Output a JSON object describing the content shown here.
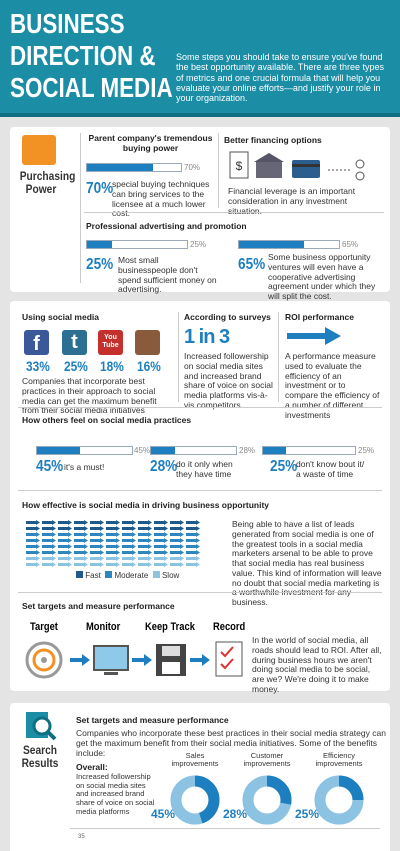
{
  "header": {
    "title": [
      "BUSINESS",
      "DIRECTION &",
      "SOCIAL MEDIA"
    ],
    "intro": "Some steps you should take to ensure you've found the best opportunity available. There are three types of metrics and one crucial formula that will help you evaluate your online efforts—and justify your role in your organization."
  },
  "purchasing": {
    "icon_label": "Purchasing Power",
    "buying": {
      "title": "Parent company's tremendous buying power",
      "stat": {
        "value": 70,
        "label": "70%"
      },
      "text": "special buying techniques can bring services to the licensee at a much lower cost."
    },
    "financing": {
      "title": "Better financing options",
      "text": "Financial leverage is an important consideration in any investment situation."
    },
    "advertising": {
      "title": "Professional advertising and promotion",
      "stats": [
        {
          "value": 25,
          "label": "25%",
          "text": "Most small businesspeople don't spend sufficient money on advertising."
        },
        {
          "value": 65,
          "label": "65%",
          "text": "Some business opportunity ventures will even have a cooperative advertising agreement under which they will split the cost."
        }
      ]
    }
  },
  "social": {
    "using": {
      "title": "Using social media",
      "platforms": [
        {
          "icon": "f",
          "value": 33,
          "label": "33%"
        },
        {
          "icon": "t",
          "value": 25,
          "label": "25%"
        },
        {
          "icon": "You Tube",
          "value": 18,
          "label": "18%"
        },
        {
          "icon": "",
          "value": 16,
          "label": "16%"
        }
      ],
      "text": "Companies that incorporate best practices in their approach to social media can get the maximum benefit from their social media initiatives"
    },
    "surveys": {
      "title": "According to surveys",
      "big": "1 in 3",
      "text": "Increased followership on social media sites and increased brand share of voice on social media platforms vis-à-vis competitors"
    },
    "roi": {
      "title": "ROI performance",
      "text": "A performance measure used to evaluate the efficiency of an investment or to compare the efficiency of a number of different investments"
    },
    "feel": {
      "title": "How others feel on social media practices",
      "stats": [
        {
          "value": 45,
          "label": "45%",
          "text": "it's a must!"
        },
        {
          "value": 28,
          "label": "28%",
          "text": "do it only when they have time"
        },
        {
          "value": 25,
          "label": "25%",
          "text": "don't know bout it/ a waste of time"
        }
      ]
    },
    "effective": {
      "title": "How effective is social media in driving business opportunity",
      "legend": [
        "Fast",
        "Moderate",
        "Slow"
      ],
      "text": "Being able to have a list of leads generated from social media is one of the greatest tools in a social media marketers arsenal to be able to prove that social media has real business value. This kind of information will leave no doubt that social media marketing is a worthwhile investment for any business."
    },
    "targets": {
      "title": "Set targets and measure performance",
      "steps": [
        "Target",
        "Monitor",
        "Keep Track",
        "Record"
      ],
      "text": "In the world of social media, all roads should lead to ROI. After all, during business hours we aren't doing social media to be social, are we? We're doing it to make money."
    }
  },
  "results": {
    "icon_label": "Search Results",
    "title": "Set targets and measure performance",
    "text": "Companies who incorporate these best practices in their social media strategy can get the maximum benefit from their social media initiatives. Some of the benefits include:",
    "overall_title": "Overall:",
    "overall_text": "Increased followership on social media sites and increased brand share of voice on social media platforms",
    "donuts": [
      {
        "title": "Sales improvements",
        "value": 45,
        "label": "45%"
      },
      {
        "title": "Customer improvements",
        "value": 28,
        "label": "28%"
      },
      {
        "title": "Efficiency improvements",
        "value": 25,
        "label": "25%"
      }
    ],
    "axis_tick": "35"
  }
}
